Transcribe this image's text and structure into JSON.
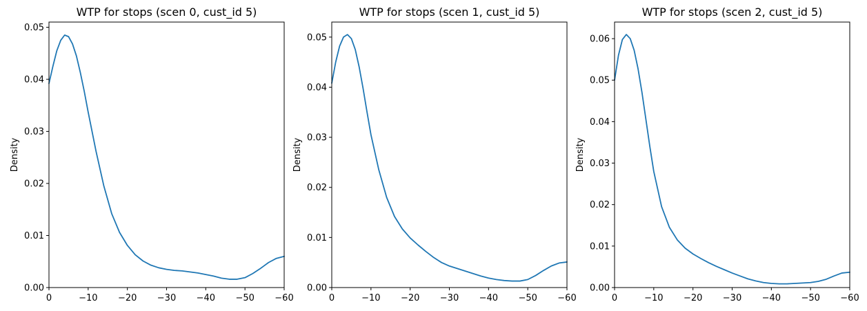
{
  "chart_data": [
    {
      "type": "line",
      "title": "WTP for stops (scen 0, cust_id 5)",
      "xlabel": "",
      "ylabel": "Density",
      "xlim": [
        0,
        -60
      ],
      "ylim": [
        0,
        0.051
      ],
      "xticks": [
        0,
        -10,
        -20,
        -30,
        -40,
        -50,
        -60
      ],
      "xtick_labels": [
        "0",
        "−10",
        "−20",
        "−30",
        "−40",
        "−50",
        "−60"
      ],
      "yticks": [
        0,
        0.01,
        0.02,
        0.03,
        0.04,
        0.05
      ],
      "ytick_labels": [
        "0.00",
        "0.01",
        "0.02",
        "0.03",
        "0.04",
        "0.05"
      ],
      "grid": false,
      "color": "#1f77b4",
      "series": [
        {
          "x": [
            0,
            -1,
            -2,
            -3,
            -4,
            -5,
            -6,
            -7,
            -8,
            -9,
            -10,
            -12,
            -14,
            -16,
            -18,
            -20,
            -22,
            -24,
            -26,
            -28,
            -30,
            -32,
            -34,
            -36,
            -38,
            -40,
            -42,
            -44,
            -46,
            -48,
            -50,
            -52,
            -54,
            -56,
            -58,
            -60
          ],
          "y": [
            0.0392,
            0.0425,
            0.0455,
            0.0475,
            0.0485,
            0.0482,
            0.0468,
            0.0445,
            0.0413,
            0.0377,
            0.0337,
            0.0262,
            0.0195,
            0.0142,
            0.0106,
            0.0081,
            0.0063,
            0.0051,
            0.0043,
            0.0038,
            0.0035,
            0.0033,
            0.0032,
            0.003,
            0.0028,
            0.0025,
            0.0022,
            0.0018,
            0.0016,
            0.0016,
            0.0019,
            0.0027,
            0.0037,
            0.0048,
            0.0056,
            0.006
          ]
        }
      ]
    },
    {
      "type": "line",
      "title": "WTP for stops (scen 1, cust_id 5)",
      "xlabel": "",
      "ylabel": "Density",
      "xlim": [
        0,
        -60
      ],
      "ylim": [
        0,
        0.053
      ],
      "xticks": [
        0,
        -10,
        -20,
        -30,
        -40,
        -50,
        -60
      ],
      "xtick_labels": [
        "0",
        "−10",
        "−20",
        "−30",
        "−40",
        "−50",
        "−60"
      ],
      "yticks": [
        0,
        0.01,
        0.02,
        0.03,
        0.04,
        0.05
      ],
      "ytick_labels": [
        "0.00",
        "0.01",
        "0.02",
        "0.03",
        "0.04",
        "0.05"
      ],
      "grid": false,
      "color": "#1f77b4",
      "series": [
        {
          "x": [
            0,
            -1,
            -2,
            -3,
            -4,
            -5,
            -6,
            -7,
            -8,
            -9,
            -10,
            -12,
            -14,
            -16,
            -18,
            -20,
            -22,
            -24,
            -26,
            -28,
            -30,
            -32,
            -34,
            -36,
            -38,
            -40,
            -42,
            -44,
            -46,
            -48,
            -50,
            -52,
            -54,
            -56,
            -58,
            -60
          ],
          "y": [
            0.0408,
            0.045,
            0.0482,
            0.05,
            0.0505,
            0.0497,
            0.0475,
            0.044,
            0.0397,
            0.035,
            0.0305,
            0.0235,
            0.018,
            0.0142,
            0.0117,
            0.0099,
            0.0085,
            0.0072,
            0.006,
            0.005,
            0.0043,
            0.0038,
            0.0033,
            0.0028,
            0.0023,
            0.0019,
            0.0016,
            0.0014,
            0.0013,
            0.0013,
            0.0016,
            0.0024,
            0.0034,
            0.0043,
            0.0049,
            0.0051
          ]
        }
      ]
    },
    {
      "type": "line",
      "title": "WTP for stops (scen 2, cust_id 5)",
      "xlabel": "",
      "ylabel": "Density",
      "xlim": [
        0,
        -60
      ],
      "ylim": [
        0,
        0.064
      ],
      "xticks": [
        0,
        -10,
        -20,
        -30,
        -40,
        -50,
        -60
      ],
      "xtick_labels": [
        "0",
        "−10",
        "−20",
        "−30",
        "−40",
        "−50",
        "−60"
      ],
      "yticks": [
        0,
        0.01,
        0.02,
        0.03,
        0.04,
        0.05,
        0.06
      ],
      "ytick_labels": [
        "0.00",
        "0.01",
        "0.02",
        "0.03",
        "0.04",
        "0.05",
        "0.06"
      ],
      "grid": false,
      "color": "#1f77b4",
      "series": [
        {
          "x": [
            0,
            -1,
            -2,
            -3,
            -4,
            -5,
            -6,
            -7,
            -8,
            -9,
            -10,
            -12,
            -14,
            -16,
            -18,
            -20,
            -22,
            -24,
            -26,
            -28,
            -30,
            -32,
            -34,
            -36,
            -38,
            -40,
            -42,
            -44,
            -46,
            -48,
            -50,
            -52,
            -54,
            -56,
            -58,
            -60
          ],
          "y": [
            0.05,
            0.056,
            0.0598,
            0.061,
            0.06,
            0.0572,
            0.0527,
            0.047,
            0.0405,
            0.034,
            0.028,
            0.0195,
            0.0145,
            0.0115,
            0.0095,
            0.0081,
            0.007,
            0.006,
            0.0051,
            0.0043,
            0.0035,
            0.0028,
            0.0021,
            0.0016,
            0.0012,
            0.001,
            0.0009,
            0.0009,
            0.001,
            0.0011,
            0.0012,
            0.0015,
            0.002,
            0.0028,
            0.0035,
            0.0037
          ]
        }
      ]
    }
  ]
}
